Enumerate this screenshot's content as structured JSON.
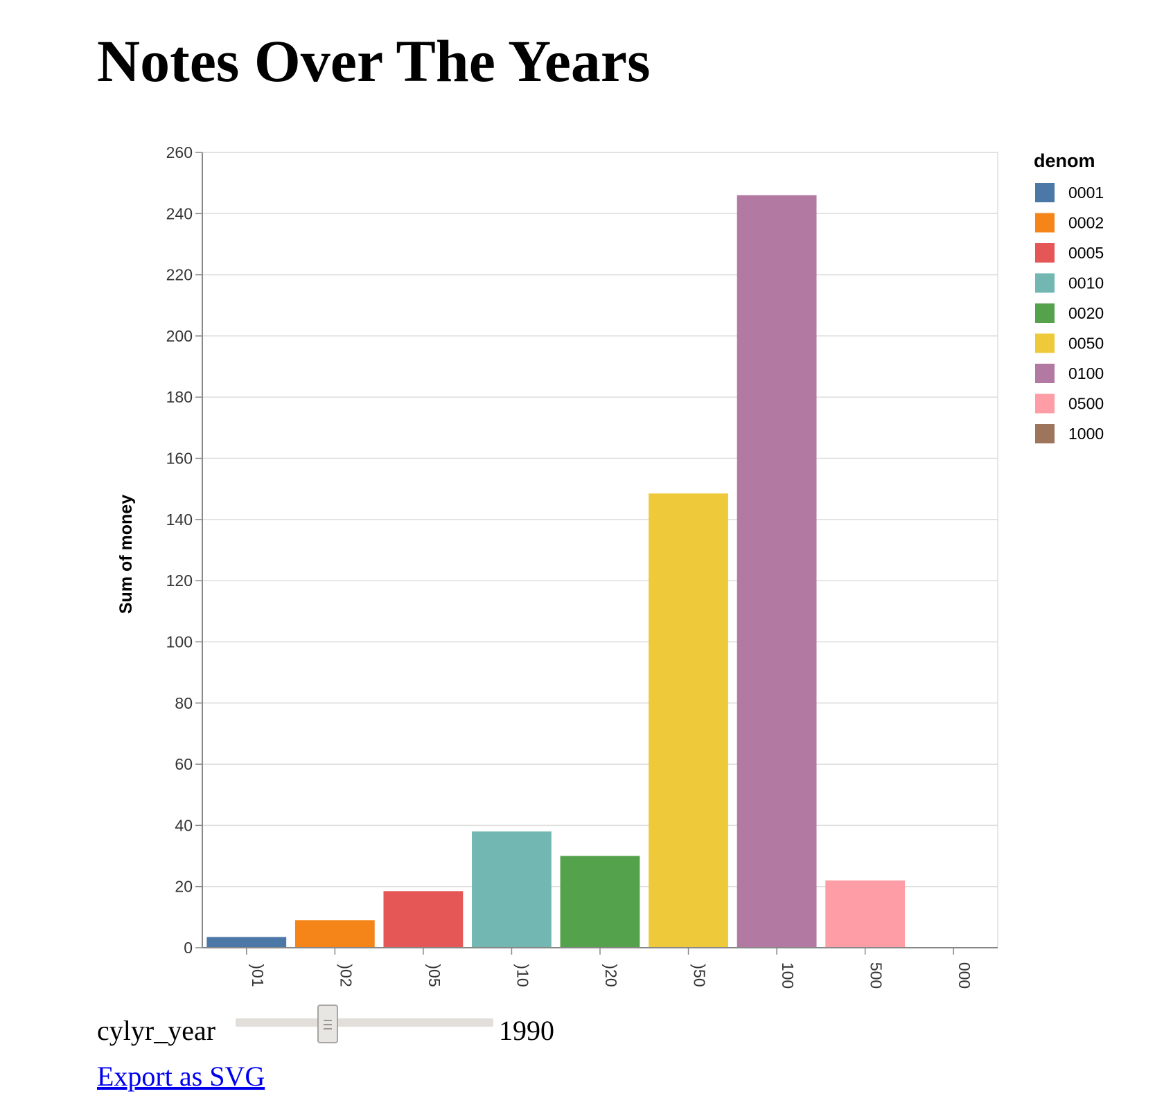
{
  "page": {
    "title": "Notes Over The Years",
    "export_link": "Export as SVG"
  },
  "slider": {
    "label": "cylyr_year",
    "value": "1990"
  },
  "colors": {
    "0001": "#4c78a8",
    "0002": "#f58518",
    "0005": "#e45756",
    "0010": "#72b7b2",
    "0020": "#54a24b",
    "0050": "#eeca3b",
    "0100": "#b279a2",
    "0500": "#ff9da6",
    "1000": "#9d755d"
  },
  "chart_data": {
    "type": "bar",
    "title": "",
    "xlabel": "",
    "ylabel": "Sum of money",
    "categories": [
      "0001",
      "0002",
      "0005",
      "0010",
      "0020",
      "0050",
      "0100",
      "0500",
      "1000"
    ],
    "x_tick_labels": [
      ")01",
      ")02",
      ")05",
      ")10",
      ")20",
      ")50",
      "100",
      "500",
      "000"
    ],
    "values": [
      3.5,
      9,
      18.5,
      38,
      30,
      148.5,
      246,
      22,
      0
    ],
    "ylim": [
      0,
      260
    ],
    "y_ticks": [
      0,
      20,
      40,
      60,
      80,
      100,
      120,
      140,
      160,
      180,
      200,
      220,
      240,
      260
    ],
    "grid": true,
    "legend": {
      "title": "denom",
      "position": "right",
      "entries": [
        "0001",
        "0002",
        "0005",
        "0010",
        "0020",
        "0050",
        "0100",
        "0500",
        "1000"
      ]
    }
  }
}
